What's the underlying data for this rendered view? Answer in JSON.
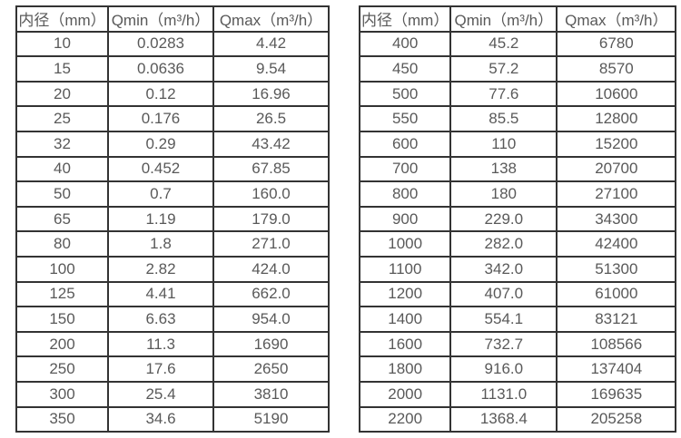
{
  "styles": {
    "border_color": "#333333",
    "text_color": "#595959",
    "background_color": "#ffffff"
  },
  "chart_data": [
    {
      "type": "table",
      "columns": [
        "内径（mm）",
        "Qmin（m³/h）",
        "Qmax（m³/h）"
      ],
      "rows": [
        [
          "10",
          "0.0283",
          "4.42"
        ],
        [
          "15",
          "0.0636",
          "9.54"
        ],
        [
          "20",
          "0.12",
          "16.96"
        ],
        [
          "25",
          "0.176",
          "26.5"
        ],
        [
          "32",
          "0.29",
          "43.42"
        ],
        [
          "40",
          "0.452",
          "67.85"
        ],
        [
          "50",
          "0.7",
          "160.0"
        ],
        [
          "65",
          "1.19",
          "179.0"
        ],
        [
          "80",
          "1.8",
          "271.0"
        ],
        [
          "100",
          "2.82",
          "424.0"
        ],
        [
          "125",
          "4.41",
          "662.0"
        ],
        [
          "150",
          "6.63",
          "954.0"
        ],
        [
          "200",
          "11.3",
          "1690"
        ],
        [
          "250",
          "17.6",
          "2650"
        ],
        [
          "300",
          "25.4",
          "3810"
        ],
        [
          "350",
          "34.6",
          "5190"
        ]
      ]
    },
    {
      "type": "table",
      "columns": [
        "内径（mm）",
        "Qmin（m³/h）",
        "Qmax（m³/h）"
      ],
      "rows": [
        [
          "400",
          "45.2",
          "6780"
        ],
        [
          "450",
          "57.2",
          "8570"
        ],
        [
          "500",
          "77.6",
          "10600"
        ],
        [
          "550",
          "85.5",
          "12800"
        ],
        [
          "600",
          "110",
          "15200"
        ],
        [
          "700",
          "138",
          "20700"
        ],
        [
          "800",
          "180",
          "27100"
        ],
        [
          "900",
          "229.0",
          "34300"
        ],
        [
          "1000",
          "282.0",
          "42400"
        ],
        [
          "1100",
          "342.0",
          "51300"
        ],
        [
          "1200",
          "407.0",
          "61000"
        ],
        [
          "1400",
          "554.1",
          "83121"
        ],
        [
          "1600",
          "732.7",
          "108566"
        ],
        [
          "1800",
          "916.0",
          "137404"
        ],
        [
          "2000",
          "1131.0",
          "169635"
        ],
        [
          "2200",
          "1368.4",
          "205258"
        ]
      ]
    }
  ]
}
